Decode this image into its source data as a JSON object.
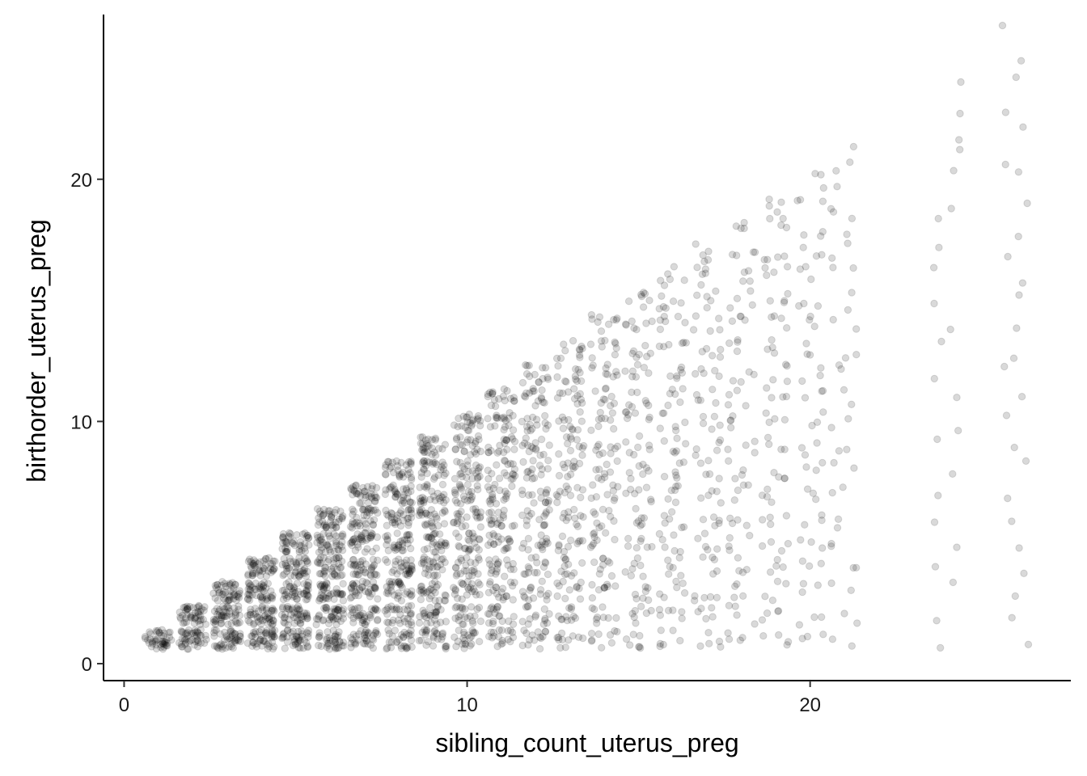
{
  "chart_data": {
    "type": "scatter",
    "title": "",
    "xlabel": "sibling_count_uterus_preg",
    "ylabel": "birthorder_uterus_preg",
    "xlim": [
      -0.6,
      27.6
    ],
    "ylim": [
      -0.7,
      26.8
    ],
    "x_ticks": [
      0,
      10,
      20
    ],
    "y_ticks": [
      0,
      10,
      20
    ],
    "x_tick_labels": [
      "0",
      "10",
      "20"
    ],
    "y_tick_labels": [
      "0",
      "10",
      "20"
    ],
    "grid": false,
    "legend": "none",
    "point_color": "#000000",
    "point_opacity": 0.15,
    "jitter": 0.4,
    "description_of_marks": "Jittered points: for every sibling count n, birth orders 1..n are observed; point density decreases as n grows.",
    "groups": [
      {
        "sibling_count": 1,
        "birthorders": [
          1
        ],
        "points_per_cell": 45
      },
      {
        "sibling_count": 2,
        "birthorders": [
          1,
          2
        ],
        "points_per_cell": 45
      },
      {
        "sibling_count": 3,
        "birthorders": [
          1,
          2,
          3
        ],
        "points_per_cell": 45
      },
      {
        "sibling_count": 4,
        "birthorders": [
          1,
          2,
          3,
          4
        ],
        "points_per_cell": 45
      },
      {
        "sibling_count": 5,
        "birthorders": [
          1,
          2,
          3,
          4,
          5
        ],
        "points_per_cell": 42
      },
      {
        "sibling_count": 6,
        "birthorders": [
          1,
          2,
          3,
          4,
          5,
          6
        ],
        "points_per_cell": 38
      },
      {
        "sibling_count": 7,
        "birthorders": [
          1,
          2,
          3,
          4,
          5,
          6,
          7
        ],
        "points_per_cell": 34
      },
      {
        "sibling_count": 8,
        "birthorders": [
          1,
          2,
          3,
          4,
          5,
          6,
          7,
          8
        ],
        "points_per_cell": 30
      },
      {
        "sibling_count": 9,
        "birthorders": [
          1,
          2,
          3,
          4,
          5,
          6,
          7,
          8,
          9
        ],
        "points_per_cell": 26
      },
      {
        "sibling_count": 10,
        "birthorders": [
          1,
          2,
          3,
          4,
          5,
          6,
          7,
          8,
          9,
          10
        ],
        "points_per_cell": 22
      },
      {
        "sibling_count": 11,
        "birthorders": [
          1,
          2,
          3,
          4,
          5,
          6,
          7,
          8,
          9,
          10,
          11
        ],
        "points_per_cell": 18
      },
      {
        "sibling_count": 12,
        "birthorders": [
          1,
          2,
          3,
          4,
          5,
          6,
          7,
          8,
          9,
          10,
          11,
          12
        ],
        "points_per_cell": 14
      },
      {
        "sibling_count": 13,
        "birthorders": [
          1,
          2,
          3,
          4,
          5,
          6,
          7,
          8,
          9,
          10,
          11,
          12,
          13
        ],
        "points_per_cell": 11
      },
      {
        "sibling_count": 14,
        "birthorders": [
          1,
          2,
          3,
          4,
          5,
          6,
          7,
          8,
          9,
          10,
          11,
          12,
          13,
          14
        ],
        "points_per_cell": 9
      },
      {
        "sibling_count": 15,
        "birthorders": [
          1,
          2,
          3,
          4,
          5,
          6,
          7,
          8,
          9,
          10,
          11,
          12,
          13,
          14,
          15
        ],
        "points_per_cell": 7
      },
      {
        "sibling_count": 16,
        "birthorders": [
          1,
          2,
          3,
          4,
          5,
          6,
          7,
          8,
          9,
          10,
          11,
          12,
          13,
          14,
          15,
          16
        ],
        "points_per_cell": 6
      },
      {
        "sibling_count": 17,
        "birthorders": [
          1,
          2,
          3,
          4,
          5,
          6,
          7,
          8,
          9,
          10,
          11,
          12,
          13,
          14,
          15,
          16,
          17
        ],
        "points_per_cell": 5
      },
      {
        "sibling_count": 18,
        "birthorders": [
          1,
          2,
          3,
          4,
          5,
          6,
          7,
          8,
          9,
          10,
          11,
          12,
          13,
          14,
          15,
          16,
          17,
          18
        ],
        "points_per_cell": 4
      },
      {
        "sibling_count": 19,
        "birthorders": [
          1,
          2,
          3,
          4,
          5,
          6,
          7,
          8,
          9,
          10,
          11,
          12,
          13,
          14,
          15,
          16,
          17,
          18,
          19
        ],
        "points_per_cell": 4
      },
      {
        "sibling_count": 20,
        "birthorders": [
          1,
          2,
          3,
          4,
          5,
          6,
          7,
          8,
          9,
          10,
          11,
          12,
          13,
          14,
          15,
          16,
          17,
          18,
          19,
          20
        ],
        "points_per_cell": 3
      },
      {
        "sibling_count": 21,
        "birthorders": [
          1,
          2,
          3,
          4,
          5,
          6,
          7,
          8,
          9,
          10,
          11,
          12,
          13,
          14,
          15,
          16,
          17,
          18,
          19,
          20,
          21
        ],
        "points_per_cell": 2
      },
      {
        "sibling_count": 24,
        "birthorders": [
          1,
          2,
          3,
          4,
          5,
          6,
          7,
          8,
          9,
          10,
          11,
          12,
          13,
          14,
          15,
          16,
          17,
          18,
          19,
          20,
          21,
          22,
          23,
          24
        ],
        "points_per_cell": 1
      },
      {
        "sibling_count": 26,
        "birthorders": [
          1,
          2,
          3,
          4,
          5,
          6,
          7,
          8,
          9,
          10,
          11,
          12,
          13,
          14,
          15,
          16,
          17,
          18,
          19,
          20,
          21,
          22,
          23,
          24,
          25,
          26
        ],
        "points_per_cell": 1
      }
    ]
  }
}
